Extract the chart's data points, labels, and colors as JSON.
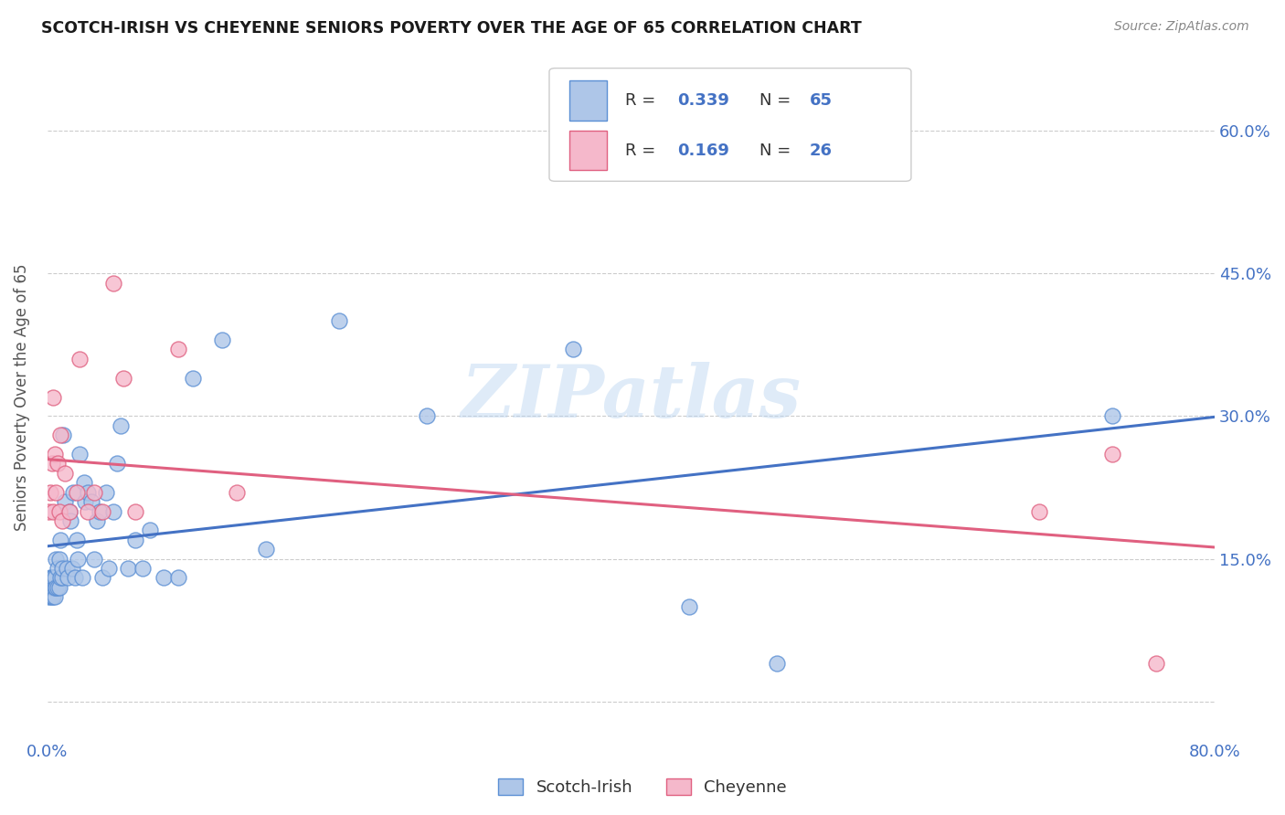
{
  "title": "SCOTCH-IRISH VS CHEYENNE SENIORS POVERTY OVER THE AGE OF 65 CORRELATION CHART",
  "source": "Source: ZipAtlas.com",
  "ylabel": "Seniors Poverty Over the Age of 65",
  "xlim": [
    0.0,
    0.8
  ],
  "ylim": [
    -0.04,
    0.68
  ],
  "xtick_positions": [
    0.0,
    0.1,
    0.2,
    0.3,
    0.4,
    0.5,
    0.6,
    0.7,
    0.8
  ],
  "xticklabels": [
    "0.0%",
    "",
    "",
    "",
    "",
    "",
    "",
    "",
    "80.0%"
  ],
  "ytick_positions": [
    0.0,
    0.15,
    0.3,
    0.45,
    0.6
  ],
  "ytick_labels_right": [
    "",
    "15.0%",
    "30.0%",
    "45.0%",
    "60.0%"
  ],
  "background_color": "#ffffff",
  "watermark_text": "ZIPatlas",
  "scotch_irish_color": "#aec6e8",
  "scotch_irish_edge_color": "#5b8fd4",
  "cheyenne_color": "#f5b8cb",
  "cheyenne_edge_color": "#e06080",
  "scotch_irish_line_color": "#4472c4",
  "cheyenne_line_color": "#e06080",
  "scotch_irish_R": "0.339",
  "scotch_irish_N": "65",
  "cheyenne_R": "0.169",
  "cheyenne_N": "26",
  "legend_label_scotch": "Scotch-Irish",
  "legend_label_cheyenne": "Cheyenne",
  "scotch_irish_x": [
    0.001,
    0.001,
    0.002,
    0.002,
    0.002,
    0.003,
    0.003,
    0.003,
    0.004,
    0.004,
    0.004,
    0.005,
    0.005,
    0.005,
    0.006,
    0.006,
    0.007,
    0.007,
    0.008,
    0.008,
    0.009,
    0.009,
    0.01,
    0.01,
    0.011,
    0.012,
    0.013,
    0.014,
    0.015,
    0.016,
    0.017,
    0.018,
    0.019,
    0.02,
    0.021,
    0.022,
    0.024,
    0.025,
    0.026,
    0.028,
    0.03,
    0.032,
    0.034,
    0.036,
    0.038,
    0.04,
    0.042,
    0.045,
    0.048,
    0.05,
    0.055,
    0.06,
    0.065,
    0.07,
    0.08,
    0.09,
    0.1,
    0.12,
    0.15,
    0.2,
    0.26,
    0.36,
    0.44,
    0.5,
    0.73
  ],
  "scotch_irish_y": [
    0.12,
    0.11,
    0.11,
    0.12,
    0.13,
    0.11,
    0.12,
    0.13,
    0.11,
    0.12,
    0.13,
    0.11,
    0.12,
    0.13,
    0.12,
    0.15,
    0.12,
    0.14,
    0.12,
    0.15,
    0.13,
    0.17,
    0.13,
    0.14,
    0.28,
    0.21,
    0.14,
    0.13,
    0.2,
    0.19,
    0.14,
    0.22,
    0.13,
    0.17,
    0.15,
    0.26,
    0.13,
    0.23,
    0.21,
    0.22,
    0.21,
    0.15,
    0.19,
    0.2,
    0.13,
    0.22,
    0.14,
    0.2,
    0.25,
    0.29,
    0.14,
    0.17,
    0.14,
    0.18,
    0.13,
    0.13,
    0.34,
    0.38,
    0.16,
    0.4,
    0.3,
    0.37,
    0.1,
    0.04,
    0.3
  ],
  "cheyenne_x": [
    0.001,
    0.002,
    0.003,
    0.004,
    0.004,
    0.005,
    0.006,
    0.007,
    0.008,
    0.009,
    0.01,
    0.012,
    0.015,
    0.02,
    0.022,
    0.028,
    0.032,
    0.038,
    0.045,
    0.052,
    0.06,
    0.09,
    0.13,
    0.68,
    0.73,
    0.76
  ],
  "cheyenne_y": [
    0.2,
    0.22,
    0.25,
    0.2,
    0.32,
    0.26,
    0.22,
    0.25,
    0.2,
    0.28,
    0.19,
    0.24,
    0.2,
    0.22,
    0.36,
    0.2,
    0.22,
    0.2,
    0.44,
    0.34,
    0.2,
    0.37,
    0.22,
    0.2,
    0.26,
    0.04
  ]
}
